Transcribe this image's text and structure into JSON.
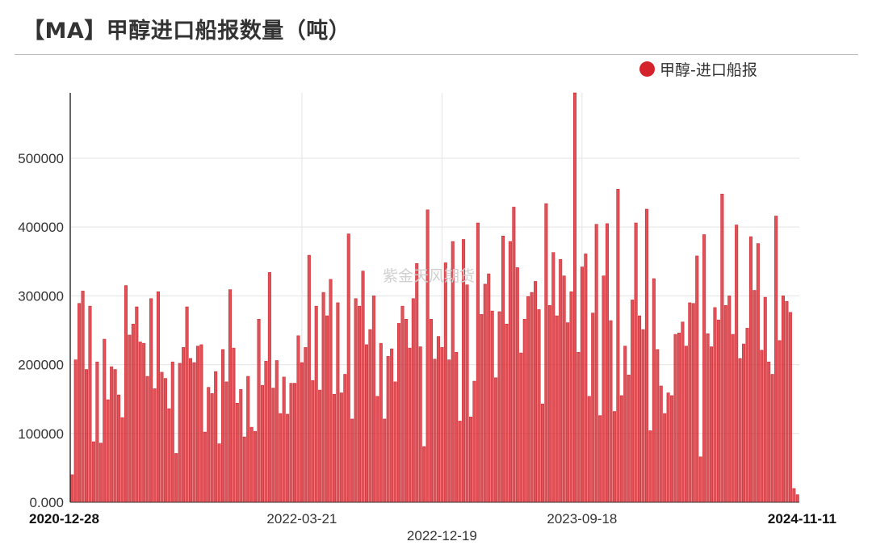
{
  "title": "【MA】甲醇进口船报数量（吨）",
  "watermark": "紫金天风期货",
  "colors": {
    "bar": "#d4232a",
    "grid": "#e3e3e3",
    "axis": "#333333"
  },
  "chart_data": {
    "type": "bar",
    "title": "【MA】甲醇进口船报数量（吨）",
    "xlabel": "",
    "ylabel": "",
    "ylim": [
      0,
      595000
    ],
    "y_ticks": [
      "0.000",
      "100000",
      "200000",
      "300000",
      "400000",
      "500000"
    ],
    "x_ticks": [
      {
        "label": "2020-12-28",
        "bold": true,
        "index": 0
      },
      {
        "label": "2022-03-21",
        "bold": false,
        "index": 64
      },
      {
        "label": "2022-12-19",
        "bold": false,
        "index": 103
      },
      {
        "label": "2023-09-18",
        "bold": false,
        "index": 142
      },
      {
        "label": "2024-11-11",
        "bold": true,
        "index": 202
      }
    ],
    "vertical_grid_indices": [
      64,
      103,
      142
    ],
    "grid": true,
    "legend_position": "top-right",
    "series": [
      {
        "name": "甲醇-进口船报",
        "values": [
          40000,
          207000,
          289000,
          307000,
          193000,
          285000,
          88000,
          204000,
          86000,
          237000,
          149000,
          197000,
          193000,
          156000,
          123000,
          315000,
          243000,
          259000,
          284000,
          233000,
          231000,
          183000,
          296000,
          165000,
          306000,
          189000,
          180000,
          136000,
          204000,
          71000,
          202000,
          225000,
          284000,
          209000,
          203000,
          227000,
          229000,
          102000,
          167000,
          158000,
          190000,
          85000,
          222000,
          175000,
          309000,
          224000,
          144000,
          164000,
          95000,
          183000,
          109000,
          103000,
          266000,
          170000,
          205000,
          334000,
          166000,
          206000,
          129000,
          182000,
          128000,
          173000,
          173000,
          242000,
          203000,
          225000,
          359000,
          177000,
          285000,
          163000,
          305000,
          271000,
          324000,
          157000,
          290000,
          159000,
          186000,
          390000,
          121000,
          296000,
          285000,
          336000,
          229000,
          251000,
          300000,
          154000,
          231000,
          121000,
          212000,
          223000,
          175000,
          260000,
          285000,
          266000,
          224000,
          296000,
          347000,
          226000,
          81000,
          425000,
          266000,
          208000,
          241000,
          225000,
          348000,
          207000,
          379000,
          218000,
          118000,
          382000,
          316000,
          124000,
          176000,
          406000,
          273000,
          317000,
          332000,
          278000,
          181000,
          277000,
          387000,
          259000,
          379000,
          429000,
          341000,
          217000,
          266000,
          299000,
          305000,
          321000,
          280000,
          143000,
          434000,
          286000,
          363000,
          271000,
          353000,
          329000,
          261000,
          306000,
          595000,
          218000,
          342000,
          361000,
          154000,
          275000,
          404000,
          126000,
          329000,
          405000,
          264000,
          132000,
          455000,
          155000,
          227000,
          185000,
          294000,
          406000,
          271000,
          251000,
          426000,
          104000,
          325000,
          222000,
          169000,
          129000,
          159000,
          155000,
          244000,
          246000,
          262000,
          227000,
          290000,
          289000,
          358000,
          66000,
          389000,
          245000,
          226000,
          283000,
          265000,
          448000,
          286000,
          300000,
          244000,
          403000,
          209000,
          230000,
          253000,
          386000,
          308000,
          376000,
          221000,
          298000,
          204000,
          186000,
          416000,
          235000,
          300000,
          292000,
          276000,
          20000,
          11000
        ]
      }
    ]
  }
}
